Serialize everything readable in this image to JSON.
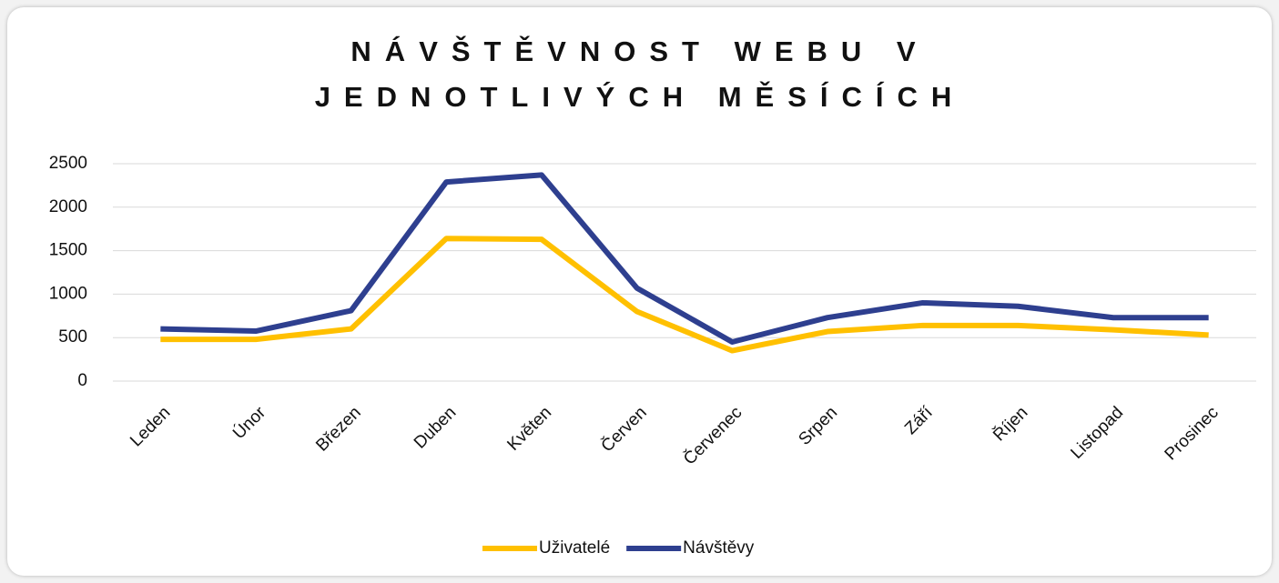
{
  "chart_data": {
    "type": "line",
    "title": "NÁVŠTĚVNOST WEBU V JEDNOTLIVÝCH MĚSÍCÍCH",
    "categories": [
      "Leden",
      "Únor",
      "Březen",
      "Duben",
      "Květen",
      "Červen",
      "Červenec",
      "Srpen",
      "Září",
      "Říjen",
      "Listopad",
      "Prosinec"
    ],
    "series": [
      {
        "name": "Uživatelé",
        "color": "#ffc000",
        "values": [
          480,
          480,
          600,
          1640,
          1630,
          800,
          350,
          570,
          640,
          640,
          590,
          530
        ]
      },
      {
        "name": "Návštěvy",
        "color": "#2e3f8f",
        "values": [
          600,
          575,
          810,
          2290,
          2370,
          1070,
          450,
          730,
          900,
          860,
          730,
          730
        ]
      }
    ],
    "ylim": [
      0,
      2500
    ],
    "yticks": [
      0,
      500,
      1000,
      1500,
      2000,
      2500
    ],
    "grid": true,
    "legend": "bottom"
  }
}
